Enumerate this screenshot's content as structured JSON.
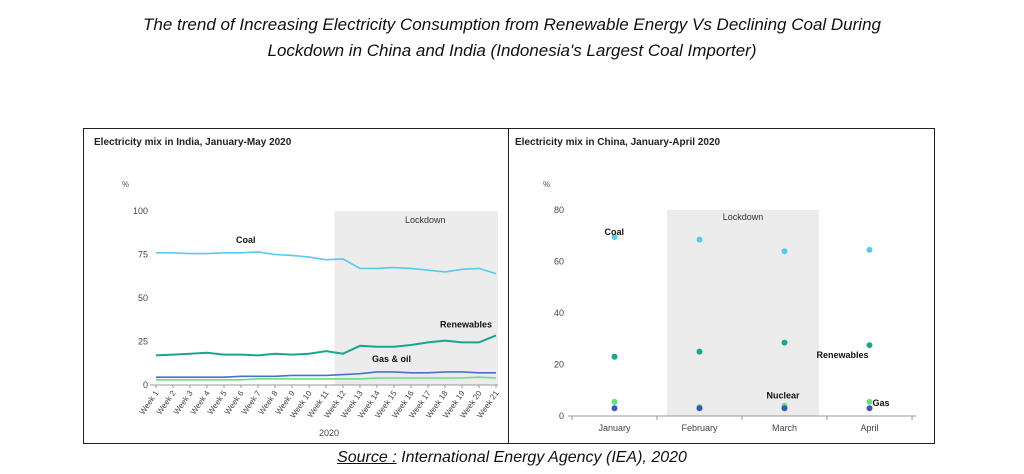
{
  "page": {
    "title_line1": "The trend of Increasing Electricity Consumption from Renewable Energy Vs Declining Coal During",
    "title_line2": "Lockdown in China and India (Indonesia's Largest Coal Importer)",
    "source_key": "Source :",
    "source_text": " International Energy Agency (IEA), 2020"
  },
  "colors": {
    "coal": "#5bc8ee",
    "renewables": "#1aa58d",
    "gas_oil": "#4a72c4",
    "green_series": "#66e07a",
    "nuclear": "#3a56c0",
    "lockdown_shade": "#ececec"
  },
  "chart_data": [
    {
      "type": "line",
      "title": "Electricity mix in India, January-May 2020",
      "ylabel": "%",
      "xlabel": "2020",
      "ylim": [
        0,
        100
      ],
      "yticks": [
        0,
        25,
        50,
        75,
        100
      ],
      "grid": false,
      "categories": [
        "Week 1",
        "Week 2",
        "Week 3",
        "Week 4",
        "Week 5",
        "Week 6",
        "Week 7",
        "Week 8",
        "Week 9",
        "Week 10",
        "Week 11",
        "Week 12",
        "Week 13",
        "Week 14",
        "Week 15",
        "Week 16",
        "Week 17",
        "Week 18",
        "Week 19",
        "Week 20",
        "Week 21"
      ],
      "shade": {
        "label": "Lockdown",
        "from": "Week 12",
        "to": "Week 21"
      },
      "series": [
        {
          "name": "Coal",
          "color": "#5bc8ee",
          "values": [
            76,
            76,
            75.5,
            75.5,
            76,
            76,
            76.5,
            75,
            74.5,
            73.5,
            72,
            72.5,
            67,
            67,
            67.5,
            67,
            66,
            65,
            66.5,
            67,
            64
          ]
        },
        {
          "name": "Renewables",
          "color": "#1aa58d",
          "values": [
            17,
            17.5,
            18,
            18.5,
            17.5,
            17.5,
            17,
            18,
            17.5,
            18,
            19.5,
            18,
            22.5,
            22,
            22,
            23,
            24.5,
            25.5,
            24.5,
            24.5,
            28.5
          ]
        },
        {
          "name": "Gas & oil",
          "color": "#4a72c4",
          "values": [
            4.5,
            4.5,
            4.5,
            4.5,
            4.5,
            5,
            5,
            5,
            5.5,
            5.5,
            5.5,
            6,
            6.5,
            7.5,
            7.5,
            7,
            7,
            7.5,
            7.5,
            7,
            7
          ]
        },
        {
          "name": "",
          "color": "#66e07a",
          "values": [
            3,
            3,
            3,
            3,
            3,
            3,
            3.5,
            3.5,
            3.5,
            3.5,
            3.5,
            3.5,
            3.5,
            4,
            4,
            4,
            4,
            4,
            4,
            4.5,
            4
          ]
        }
      ],
      "annotations": [
        "Coal",
        "Renewables",
        "Gas & oil",
        "Lockdown"
      ]
    },
    {
      "type": "scatter",
      "title": "Electricity mix in China, January-April 2020",
      "ylabel": "%",
      "xlabel": "",
      "ylim": [
        0,
        80
      ],
      "yticks": [
        0,
        20,
        40,
        60,
        80
      ],
      "grid": false,
      "categories": [
        "January",
        "February",
        "March",
        "April"
      ],
      "shade": {
        "label": "Lockdown",
        "from": "February",
        "to": "March"
      },
      "series": [
        {
          "name": "Coal",
          "color": "#5bc8ee",
          "values": [
            69.5,
            68.5,
            64,
            64.5
          ]
        },
        {
          "name": "Renewables",
          "color": "#1aa58d",
          "values": [
            23,
            25,
            28.5,
            27.5
          ]
        },
        {
          "name": "Gas",
          "color": "#66e07a",
          "values": [
            5.5,
            3.5,
            4,
            5.5
          ]
        },
        {
          "name": "Nuclear",
          "color": "#3a56c0",
          "values": [
            3,
            3,
            3,
            3
          ]
        }
      ],
      "annotations": [
        "Coal",
        "Renewables",
        "Nuclear",
        "Gas",
        "Lockdown"
      ]
    }
  ]
}
